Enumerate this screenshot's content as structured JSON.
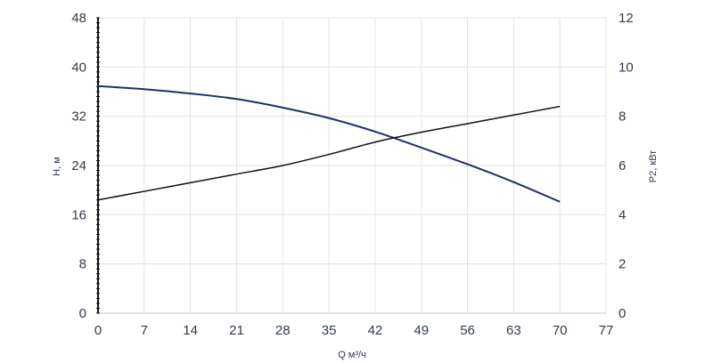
{
  "chart_data": {
    "type": "line",
    "xlabel": "Q м³/ч",
    "ylabel_left": "H, м",
    "ylabel_right": "P2, кВт",
    "xlim": [
      0,
      77
    ],
    "ylim_left": [
      0,
      48
    ],
    "ylim_right": [
      0,
      12
    ],
    "x_ticks": [
      0,
      7,
      14,
      21,
      28,
      35,
      42,
      49,
      56,
      63,
      70,
      77
    ],
    "y_left_ticks": [
      0,
      8,
      16,
      24,
      32,
      40,
      48
    ],
    "y_right_ticks": [
      0,
      2,
      4,
      6,
      8,
      10,
      12
    ],
    "grid": true,
    "series": [
      {
        "axis": "left",
        "color": "#1f2f6b",
        "x": [
          0,
          7,
          14,
          21,
          28,
          35,
          42,
          49,
          56,
          63,
          70
        ],
        "y": [
          36.9,
          36.4,
          35.7,
          34.8,
          33.4,
          31.7,
          29.5,
          26.9,
          24.2,
          21.3,
          18.1
        ]
      },
      {
        "axis": "right",
        "color": "#111111",
        "x": [
          0,
          7,
          14,
          21,
          28,
          35,
          42,
          49,
          56,
          63,
          70
        ],
        "y": [
          4.6,
          4.95,
          5.3,
          5.65,
          6.0,
          6.45,
          6.95,
          7.35,
          7.7,
          8.05,
          8.4
        ]
      }
    ]
  }
}
